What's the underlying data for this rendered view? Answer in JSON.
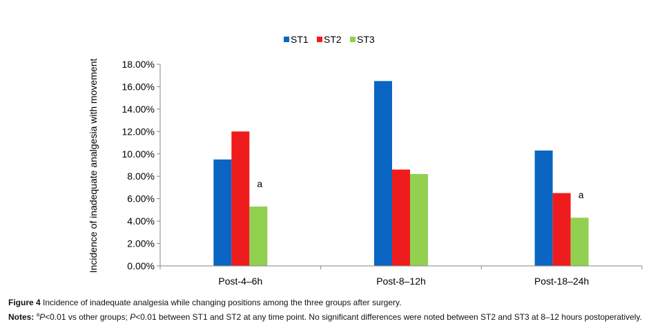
{
  "chart_data": {
    "type": "bar",
    "ylabel": "Incidence of inadequate analgesia with movement",
    "ylim": [
      0,
      18
    ],
    "ytick_step": 2,
    "ytick_labels": [
      "0.00%",
      "2.00%",
      "4.00%",
      "6.00%",
      "8.00%",
      "10.00%",
      "12.00%",
      "14.00%",
      "16.00%",
      "18.00%"
    ],
    "categories": [
      "Post-4–6h",
      "Post-8–12h",
      "Post-18–24h"
    ],
    "series": [
      {
        "name": "ST1",
        "color": "#0a66c2",
        "values": [
          9.5,
          16.5,
          10.3
        ]
      },
      {
        "name": "ST2",
        "color": "#ee1c1c",
        "values": [
          12.0,
          8.6,
          6.5
        ]
      },
      {
        "name": "ST3",
        "color": "#92d050",
        "values": [
          5.3,
          8.2,
          4.3
        ]
      }
    ],
    "annotations": [
      {
        "text": "a",
        "category": 0,
        "series": 2
      },
      {
        "text": "a",
        "category": 2,
        "series": 2
      }
    ],
    "legend_position": "top-center",
    "grid": false
  },
  "caption": {
    "figure_label": "Figure 4",
    "figure_text": " Incidence of inadequate analgesia while changing positions among the three groups after surgery.",
    "notes_label": "Notes:",
    "notes_sup": "a",
    "notes_p1": "P",
    "notes_text1": "<0.01 vs other groups; ",
    "notes_p2": "P",
    "notes_text2": "<0.01 between ST1 and ST2 at any time point. No significant differences were noted between ST2 and ST3 at 8–12 hours postoperatively."
  }
}
